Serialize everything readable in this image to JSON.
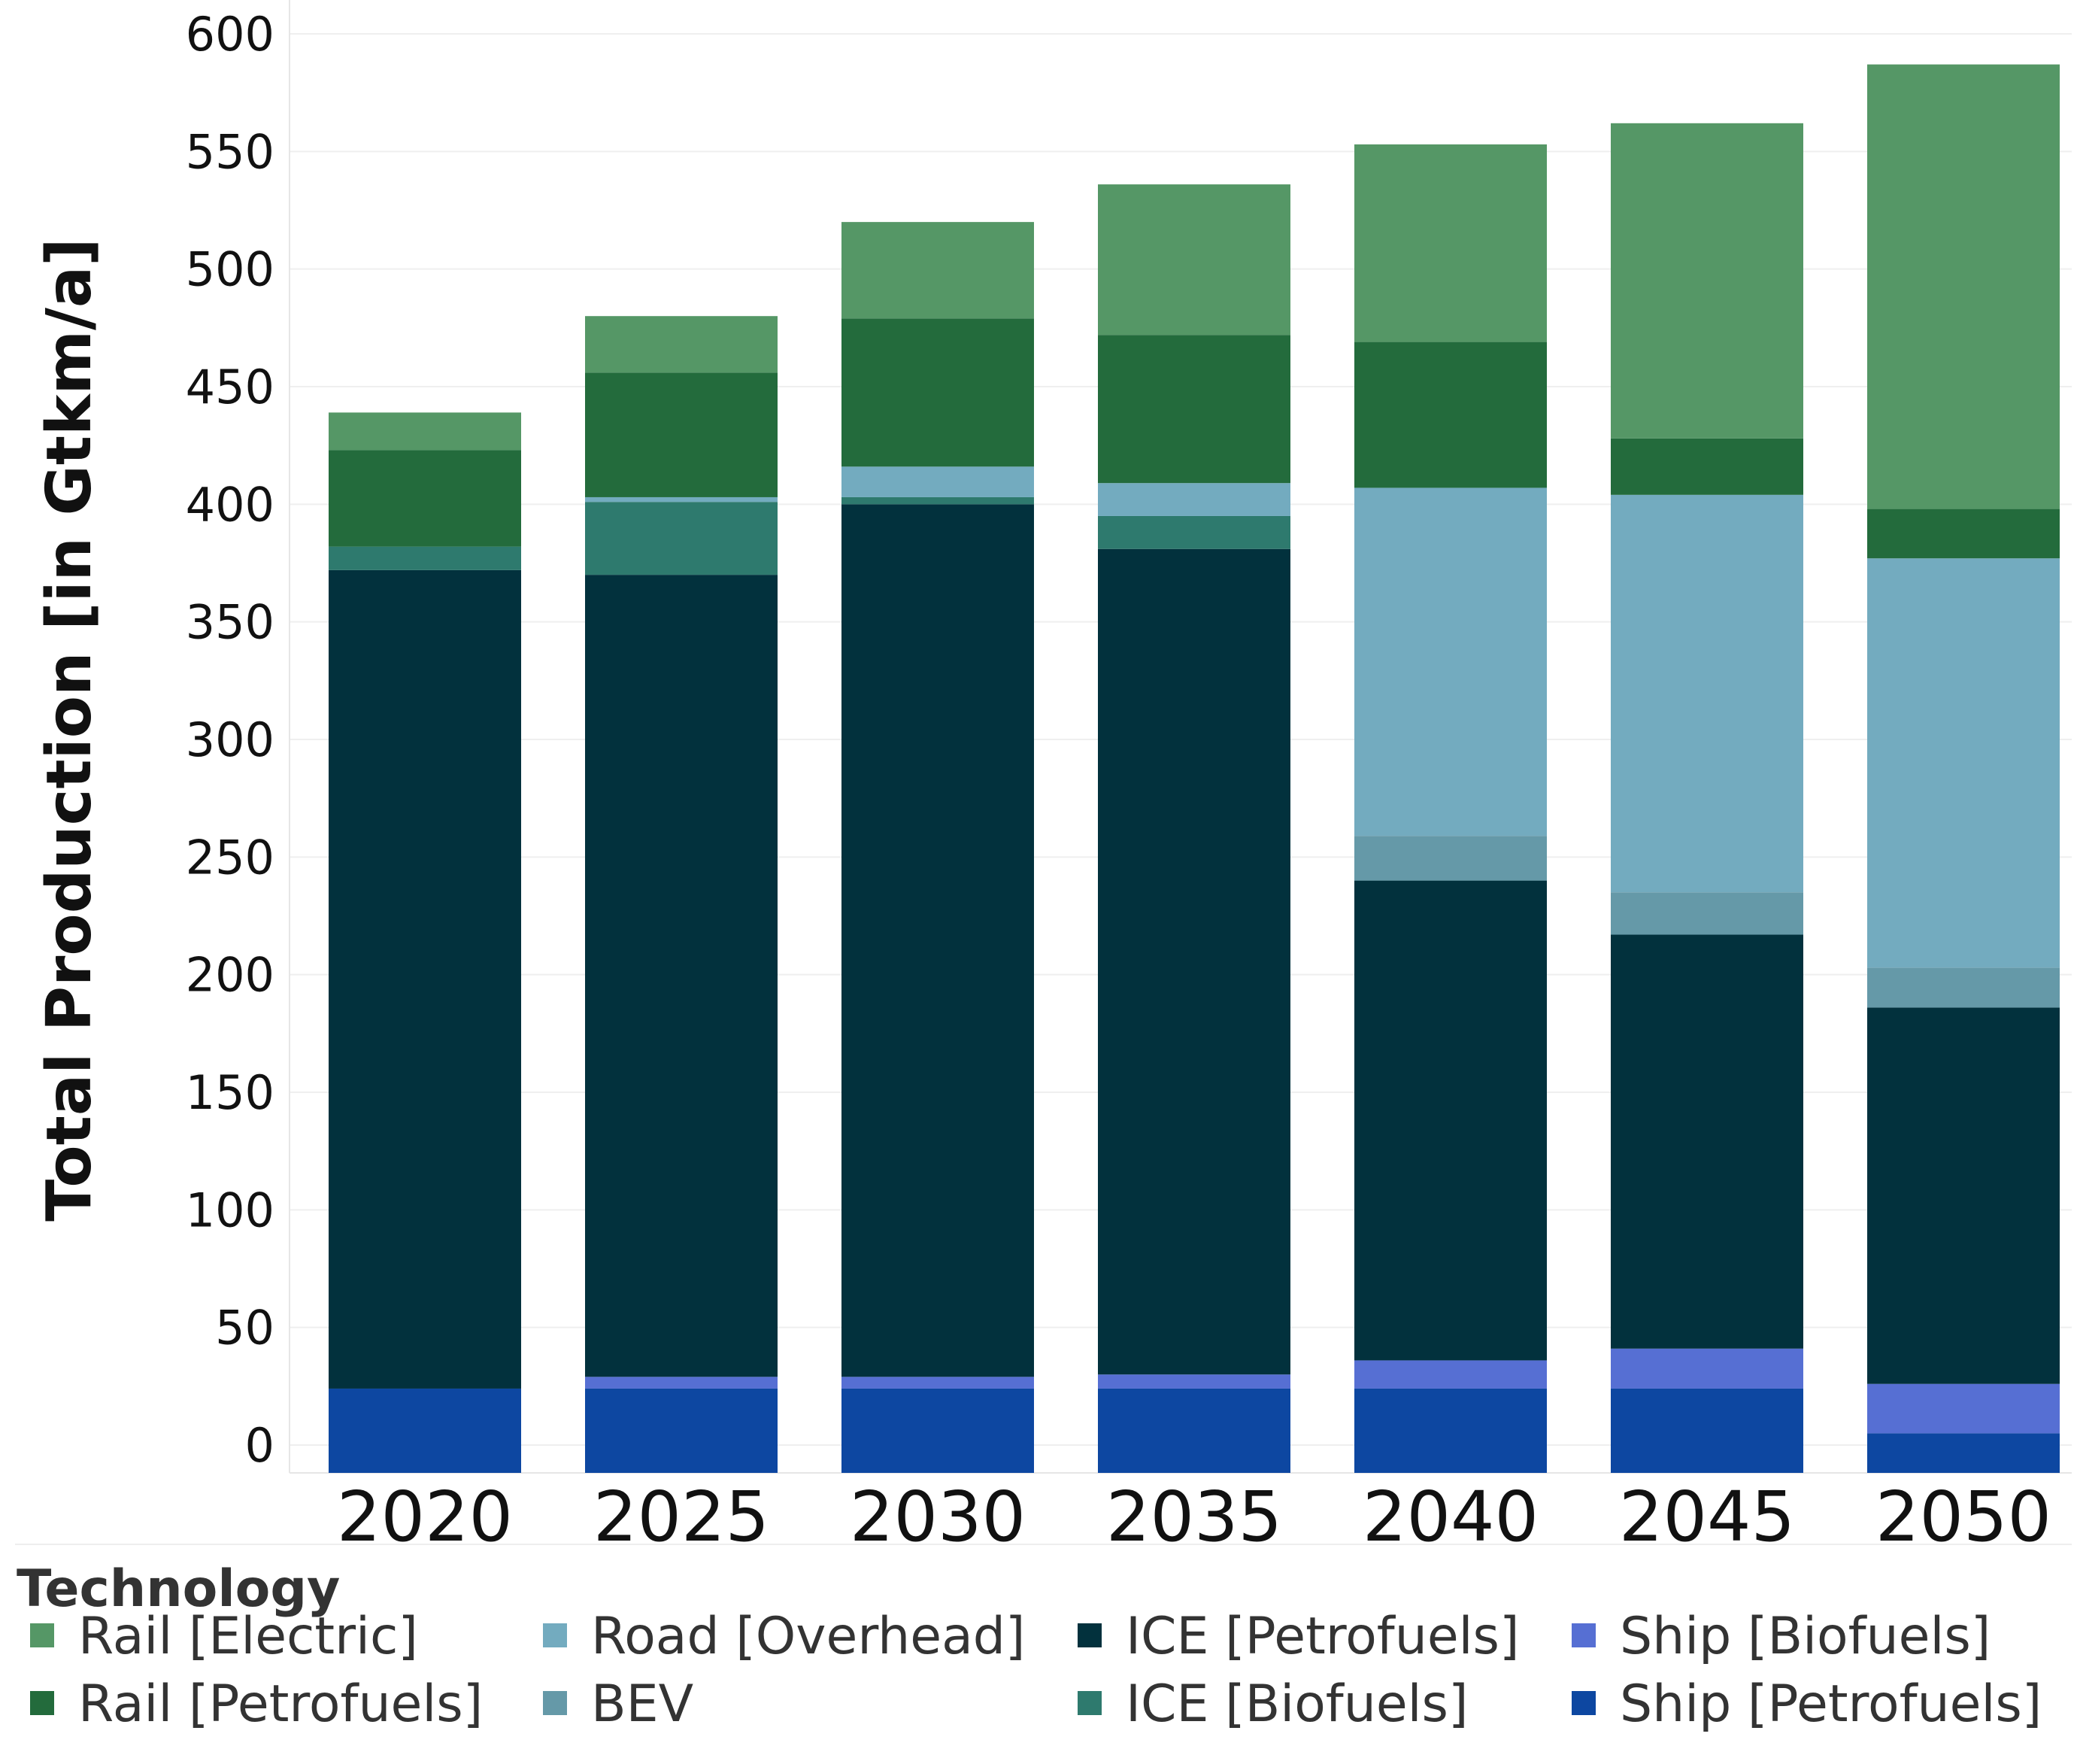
{
  "chart_data": {
    "type": "bar",
    "stacked": true,
    "title": "",
    "xlabel": "",
    "ylabel": "Total Production [in Gtkm/a]",
    "ylim": [
      -10,
      600
    ],
    "yticks": [
      0,
      50,
      100,
      150,
      200,
      250,
      300,
      350,
      400,
      450,
      500,
      550,
      600
    ],
    "grid": true,
    "categories": [
      "2020",
      "2025",
      "2030",
      "2035",
      "2040",
      "2045",
      "2050"
    ],
    "series": [
      {
        "name": "Ship [Petrofuels]",
        "color": "#0d47a1",
        "values": [
          24,
          24,
          24,
          24,
          24,
          24,
          5
        ]
      },
      {
        "name": "Ship [Biofuels]",
        "color": "#566fd3",
        "values": [
          0,
          5,
          5,
          6,
          12,
          17,
          21
        ]
      },
      {
        "name": "ICE [Petrofuels]",
        "color": "#02313d",
        "values": [
          348,
          341,
          371,
          351,
          204,
          176,
          160
        ]
      },
      {
        "name": "ICE [Biofuels]",
        "color": "#2e7a6e",
        "values": [
          10,
          31,
          3,
          14,
          0,
          0,
          0
        ]
      },
      {
        "name": "BEV",
        "color": "#6599a8",
        "values": [
          0,
          0,
          0,
          0,
          19,
          18,
          17
        ]
      },
      {
        "name": "Road [Overhead]",
        "color": "#73abbf",
        "values": [
          0,
          2,
          13,
          14,
          148,
          169,
          174
        ]
      },
      {
        "name": "Rail [Petrofuels]",
        "color": "#236b3c",
        "values": [
          41,
          53,
          63,
          63,
          62,
          24,
          21
        ]
      },
      {
        "name": "Rail [Electric]",
        "color": "#559766",
        "values": [
          16,
          24,
          41,
          64,
          84,
          134,
          189
        ]
      }
    ],
    "legend": {
      "title": "Technology",
      "position": "bottom",
      "entries": [
        [
          "Rail [Electric]",
          "Rail [Petrofuels]"
        ],
        [
          "Road [Overhead]",
          "BEV"
        ],
        [
          "ICE [Petrofuels]",
          "ICE [Biofuels]"
        ],
        [
          "Ship [Biofuels]",
          "Ship [Petrofuels]"
        ]
      ]
    }
  }
}
